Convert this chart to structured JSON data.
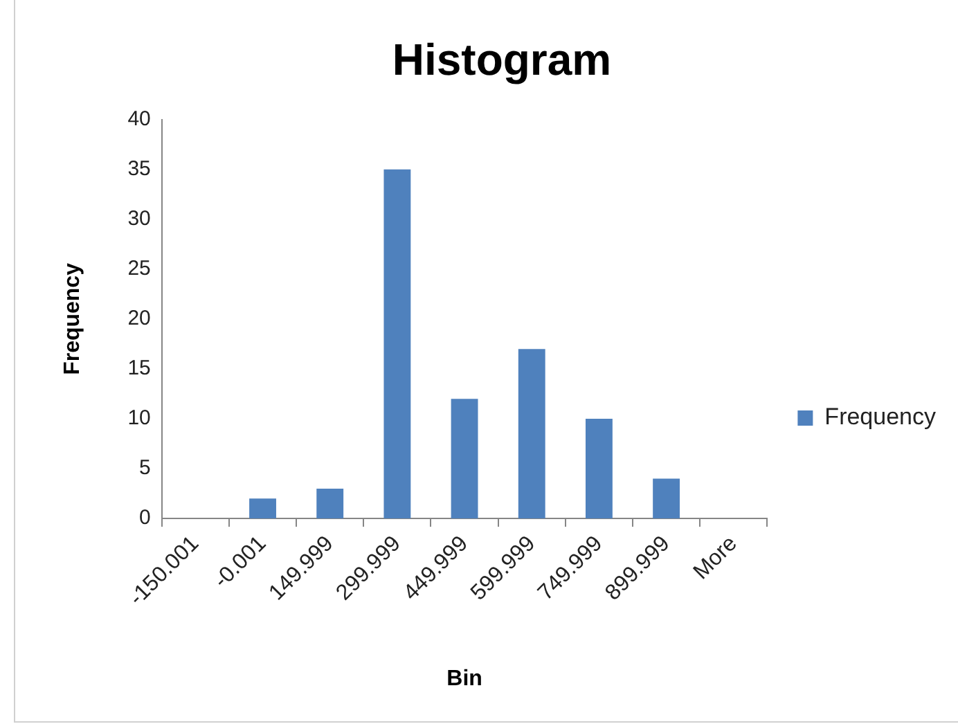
{
  "chart_data": {
    "type": "bar",
    "title": "Histogram",
    "xlabel": "Bin",
    "ylabel": "Frequency",
    "categories": [
      "-150.001",
      "-0.001",
      "149.999",
      "299.999",
      "449.999",
      "599.999",
      "749.999",
      "899.999",
      "More"
    ],
    "series": [
      {
        "name": "Frequency",
        "color": "#4f81bd",
        "values": [
          0,
          2,
          3,
          35,
          12,
          17,
          10,
          4,
          0
        ]
      }
    ],
    "ylim": [
      0,
      40
    ],
    "yticks": [
      0,
      5,
      10,
      15,
      20,
      25,
      30,
      35,
      40
    ],
    "legend": "right"
  }
}
